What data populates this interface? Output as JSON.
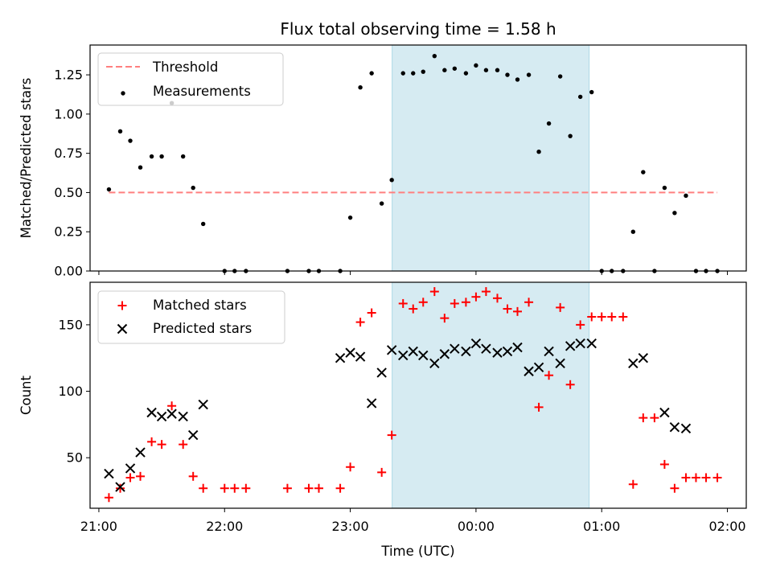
{
  "chart_data": [
    {
      "type": "scatter",
      "title": "Flux total observing time = 1.58 h",
      "xlabel": "",
      "ylabel": "Matched/Predicted stars",
      "xlim": [
        20.93,
        26.15
      ],
      "ylim": [
        0.0,
        1.44
      ],
      "yticks": [
        0.0,
        0.25,
        0.5,
        0.75,
        1.0,
        1.25
      ],
      "ytick_labels": [
        "0.00",
        "0.25",
        "0.50",
        "0.75",
        "1.00",
        "1.25"
      ],
      "xticks": [
        21,
        22,
        23,
        24,
        25,
        26
      ],
      "highlight_span": [
        23.333,
        24.9
      ],
      "highlight_color": "#add8e6",
      "legend": {
        "position": "top-left"
      },
      "threshold": {
        "name": "Threshold",
        "value": 0.5,
        "x_range": [
          21.08,
          25.92
        ],
        "color": "#ff7f7f"
      },
      "series": [
        {
          "name": "Measurements",
          "color": "#000000",
          "marker": "dot",
          "x": [
            21.08,
            21.17,
            21.25,
            21.33,
            21.42,
            21.5,
            21.58,
            21.67,
            21.75,
            21.83,
            22.0,
            22.08,
            22.17,
            22.5,
            22.67,
            22.75,
            22.92,
            23.0,
            23.08,
            23.17,
            23.25,
            23.33,
            23.42,
            23.5,
            23.58,
            23.67,
            23.75,
            23.83,
            23.92,
            24.0,
            24.08,
            24.17,
            24.25,
            24.33,
            24.42,
            24.5,
            24.58,
            24.67,
            24.75,
            24.83,
            24.92,
            25.0,
            25.08,
            25.17,
            25.25,
            25.33,
            25.42,
            25.5,
            25.58,
            25.67,
            25.75,
            25.83,
            25.92
          ],
          "y": [
            0.52,
            0.89,
            0.83,
            0.66,
            0.73,
            0.73,
            1.07,
            0.73,
            0.53,
            0.3,
            0.0,
            0.0,
            0.0,
            0.0,
            0.0,
            0.0,
            0.0,
            0.34,
            1.17,
            1.26,
            0.43,
            0.58,
            1.26,
            1.26,
            1.27,
            1.37,
            1.28,
            1.29,
            1.26,
            1.31,
            1.28,
            1.28,
            1.25,
            1.22,
            1.25,
            0.76,
            0.94,
            1.24,
            0.86,
            1.11,
            1.14,
            0.0,
            0.0,
            0.0,
            0.25,
            0.63,
            0.0,
            0.53,
            0.37,
            0.48,
            0.0,
            0.0,
            0.0
          ]
        }
      ]
    },
    {
      "type": "scatter",
      "title": "",
      "xlabel": "Time (UTC)",
      "ylabel": "Count",
      "xlim": [
        20.93,
        26.15
      ],
      "ylim": [
        12,
        182
      ],
      "yticks": [
        50,
        100,
        150
      ],
      "ytick_labels": [
        "50",
        "100",
        "150"
      ],
      "xticks": [
        21,
        22,
        23,
        24,
        25,
        26
      ],
      "xtick_labels": [
        "21:00",
        "22:00",
        "23:00",
        "00:00",
        "01:00",
        "02:00"
      ],
      "highlight_span": [
        23.333,
        24.9
      ],
      "highlight_color": "#add8e6",
      "legend": {
        "position": "top-left"
      },
      "series": [
        {
          "name": "Matched stars",
          "color": "#ff0000",
          "marker": "plus",
          "x": [
            21.08,
            21.17,
            21.25,
            21.33,
            21.42,
            21.5,
            21.58,
            21.67,
            21.75,
            21.83,
            22.0,
            22.08,
            22.17,
            22.5,
            22.67,
            22.75,
            22.92,
            23.0,
            23.08,
            23.17,
            23.25,
            23.33,
            23.42,
            23.5,
            23.58,
            23.67,
            23.75,
            23.83,
            23.92,
            24.0,
            24.08,
            24.17,
            24.25,
            24.33,
            24.42,
            24.5,
            24.58,
            24.67,
            24.75,
            24.83,
            24.92,
            25.0,
            25.08,
            25.17,
            25.25,
            25.33,
            25.42,
            25.5,
            25.58,
            25.67,
            25.75,
            25.83,
            25.92
          ],
          "y": [
            20,
            27,
            35,
            36,
            62,
            60,
            89,
            60,
            36,
            27,
            27,
            27,
            27,
            27,
            27,
            27,
            27,
            43,
            152,
            159,
            39,
            67,
            166,
            162,
            167,
            175,
            155,
            166,
            167,
            171,
            175,
            170,
            162,
            160,
            167,
            88,
            112,
            163,
            105,
            150,
            156,
            156,
            156,
            156,
            30,
            80,
            80,
            45,
            27,
            35,
            35,
            35,
            35
          ]
        },
        {
          "name": "Predicted stars",
          "color": "#000000",
          "marker": "x",
          "x": [
            21.08,
            21.17,
            21.25,
            21.33,
            21.42,
            21.5,
            21.58,
            21.67,
            21.75,
            21.83,
            22.92,
            23.0,
            23.08,
            23.17,
            23.25,
            23.33,
            23.42,
            23.5,
            23.58,
            23.67,
            23.75,
            23.83,
            23.92,
            24.0,
            24.08,
            24.17,
            24.25,
            24.33,
            24.42,
            24.5,
            24.58,
            24.67,
            24.75,
            24.83,
            24.92,
            25.25,
            25.33,
            25.5,
            25.58,
            25.67
          ],
          "y": [
            38,
            28,
            42,
            54,
            84,
            81,
            83,
            81,
            67,
            90,
            125,
            129,
            126,
            91,
            114,
            131,
            127,
            130,
            127,
            121,
            128,
            132,
            130,
            136,
            132,
            129,
            130,
            133,
            115,
            118,
            130,
            121,
            134,
            136,
            136,
            121,
            125,
            84,
            73,
            72
          ]
        }
      ]
    }
  ]
}
